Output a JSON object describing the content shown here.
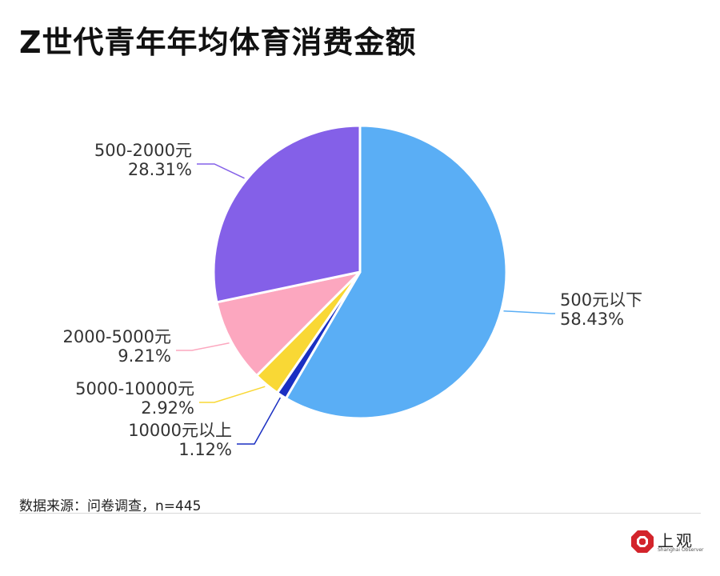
{
  "chart_data": {
    "type": "pie",
    "title": "Z世代青年年均体育消费金额",
    "slices": [
      {
        "label": "500元以下",
        "value": 58.43,
        "value_label": "58.43%",
        "color": "#5aaef5"
      },
      {
        "label": "10000元以上",
        "value": 1.12,
        "value_label": "1.12%",
        "color": "#1a2fc2"
      },
      {
        "label": "5000-10000元",
        "value": 2.92,
        "value_label": "2.92%",
        "color": "#f9d835"
      },
      {
        "label": "2000-5000元",
        "value": 9.21,
        "value_label": "9.21%",
        "color": "#fca7bf"
      },
      {
        "label": "500-2000元",
        "value": 28.31,
        "value_label": "28.31%",
        "color": "#8460e8"
      }
    ],
    "start_angle_deg": 0,
    "direction": "clockwise",
    "slice_border_color": "#ffffff",
    "legend": "none"
  },
  "footer": {
    "source": "数据来源：问卷调查，n=445"
  },
  "logo": {
    "text": "上观",
    "subtext": "Shanghai Observer",
    "icon": "shangguan-logo-icon",
    "color": "#d3242b"
  }
}
